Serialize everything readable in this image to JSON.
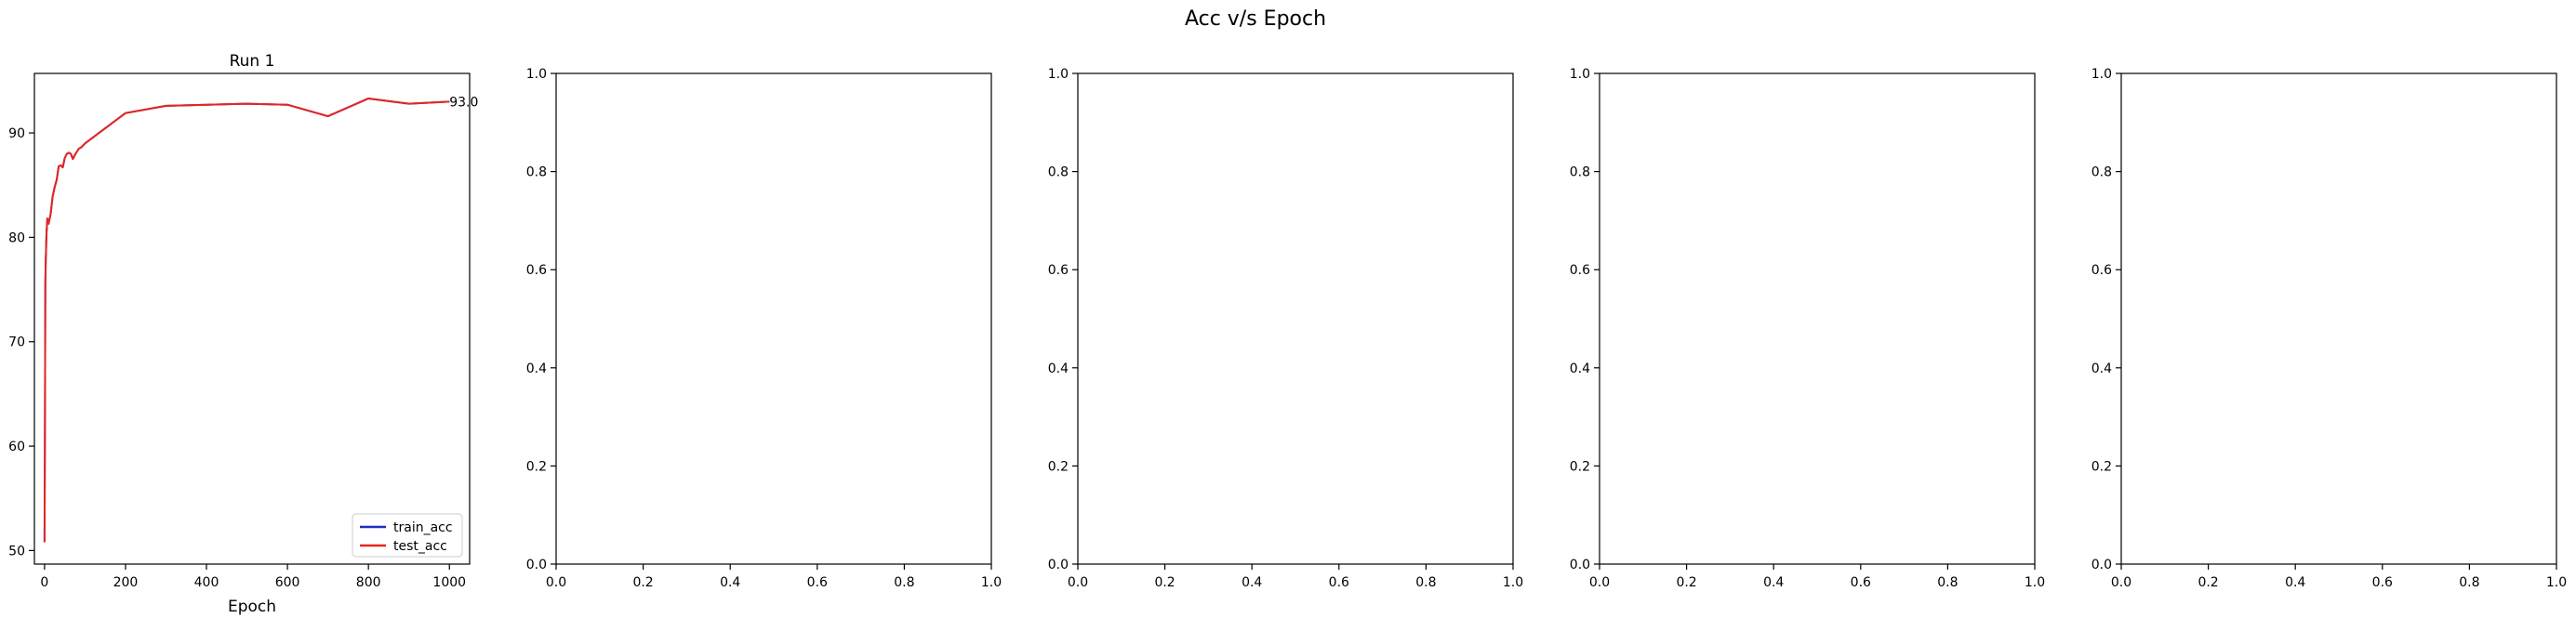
{
  "figure": {
    "title": "Acc v/s Epoch"
  },
  "chart_data": [
    {
      "type": "line",
      "title": "Run 1",
      "xlabel": "Epoch",
      "ylabel": "",
      "xlim": [
        -25,
        1050
      ],
      "ylim": [
        48.7,
        95.7
      ],
      "xticks": [
        0,
        200,
        400,
        600,
        800,
        1000
      ],
      "yticks": [
        50,
        60,
        70,
        80,
        90
      ],
      "legend": "lower-right",
      "annotation": {
        "text": "93.0",
        "x": 1000,
        "y": 93.0
      },
      "series": [
        {
          "name": "train_acc",
          "color": "#1f2dbf",
          "x": [
            0,
            1,
            2,
            3,
            5,
            7,
            10,
            15,
            20,
            25,
            30,
            35,
            40,
            45,
            50,
            55,
            60,
            65,
            70,
            75,
            80,
            85,
            90,
            100,
            200,
            300,
            400,
            500,
            600,
            700,
            800,
            900,
            1000
          ],
          "y": [
            50.8,
            62.0,
            75.5,
            77.8,
            80.5,
            81.8,
            81.3,
            82.2,
            83.9,
            84.8,
            85.5,
            86.8,
            86.9,
            86.7,
            87.6,
            88.0,
            88.1,
            88.0,
            87.5,
            87.9,
            88.2,
            88.5,
            88.6,
            89.0,
            91.9,
            92.6,
            92.7,
            92.8,
            92.7,
            91.6,
            93.3,
            92.8,
            93.0
          ]
        },
        {
          "name": "test_acc",
          "color": "#e8251f",
          "x": [
            0,
            1,
            2,
            3,
            5,
            7,
            10,
            15,
            20,
            25,
            30,
            35,
            40,
            45,
            50,
            55,
            60,
            65,
            70,
            75,
            80,
            85,
            90,
            100,
            200,
            300,
            400,
            500,
            600,
            700,
            800,
            900,
            1000
          ],
          "y": [
            50.8,
            62.0,
            75.5,
            77.8,
            80.5,
            81.8,
            81.3,
            82.2,
            83.9,
            84.8,
            85.5,
            86.8,
            86.9,
            86.7,
            87.6,
            88.0,
            88.1,
            88.0,
            87.5,
            87.9,
            88.2,
            88.5,
            88.6,
            89.0,
            91.9,
            92.6,
            92.7,
            92.8,
            92.7,
            91.6,
            93.3,
            92.8,
            93.0
          ]
        }
      ]
    },
    {
      "type": "line",
      "title": "",
      "xlabel": "",
      "ylabel": "",
      "xlim": [
        0,
        1
      ],
      "ylim": [
        0,
        1
      ],
      "xticks": [
        0,
        0.2,
        0.4,
        0.6,
        0.8,
        1
      ],
      "yticks": [
        0,
        0.2,
        0.4,
        0.6,
        0.8,
        1
      ],
      "xtick_labels": [
        "0.0",
        "0.2",
        "0.4",
        "0.6",
        "0.8",
        "1.0"
      ],
      "ytick_labels": [
        "0.0",
        "0.2",
        "0.4",
        "0.6",
        "0.8",
        "1.0"
      ],
      "series": []
    },
    {
      "type": "line",
      "title": "",
      "xlabel": "",
      "ylabel": "",
      "xlim": [
        0,
        1
      ],
      "ylim": [
        0,
        1
      ],
      "xticks": [
        0,
        0.2,
        0.4,
        0.6,
        0.8,
        1
      ],
      "yticks": [
        0,
        0.2,
        0.4,
        0.6,
        0.8,
        1
      ],
      "xtick_labels": [
        "0.0",
        "0.2",
        "0.4",
        "0.6",
        "0.8",
        "1.0"
      ],
      "ytick_labels": [
        "0.0",
        "0.2",
        "0.4",
        "0.6",
        "0.8",
        "1.0"
      ],
      "series": []
    },
    {
      "type": "line",
      "title": "",
      "xlabel": "",
      "ylabel": "",
      "xlim": [
        0,
        1
      ],
      "ylim": [
        0,
        1
      ],
      "xticks": [
        0,
        0.2,
        0.4,
        0.6,
        0.8,
        1
      ],
      "yticks": [
        0,
        0.2,
        0.4,
        0.6,
        0.8,
        1
      ],
      "xtick_labels": [
        "0.0",
        "0.2",
        "0.4",
        "0.6",
        "0.8",
        "1.0"
      ],
      "ytick_labels": [
        "0.0",
        "0.2",
        "0.4",
        "0.6",
        "0.8",
        "1.0"
      ],
      "series": []
    },
    {
      "type": "line",
      "title": "",
      "xlabel": "",
      "ylabel": "",
      "xlim": [
        0,
        1
      ],
      "ylim": [
        0,
        1
      ],
      "xticks": [
        0,
        0.2,
        0.4,
        0.6,
        0.8,
        1
      ],
      "yticks": [
        0,
        0.2,
        0.4,
        0.6,
        0.8,
        1
      ],
      "xtick_labels": [
        "0.0",
        "0.2",
        "0.4",
        "0.6",
        "0.8",
        "1.0"
      ],
      "ytick_labels": [
        "0.0",
        "0.2",
        "0.4",
        "0.6",
        "0.8",
        "1.0"
      ],
      "series": []
    }
  ]
}
